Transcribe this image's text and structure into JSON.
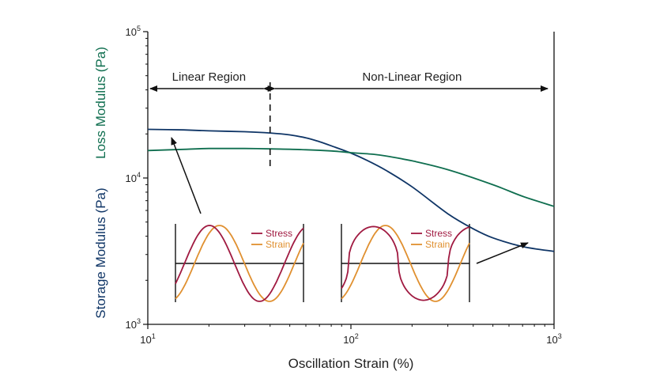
{
  "chart_data": {
    "type": "line",
    "xlabel": "Oscillation Strain (%)",
    "ylabel_primary": "Storage Modulus (Pa)",
    "ylabel_secondary": "Loss Modulus (Pa)",
    "x_scale": "log",
    "y_scale": "log",
    "xlim": [
      10,
      1000
    ],
    "ylim": [
      1000,
      100000
    ],
    "x_ticks": [
      {
        "value": 10,
        "base": "10",
        "exp": "1"
      },
      {
        "value": 100,
        "base": "10",
        "exp": "2"
      },
      {
        "value": 1000,
        "base": "10",
        "exp": "3"
      }
    ],
    "y_ticks": [
      {
        "value": 1000,
        "base": "10",
        "exp": "3"
      },
      {
        "value": 10000,
        "base": "10",
        "exp": "4"
      },
      {
        "value": 100000,
        "base": "10",
        "exp": "5"
      }
    ],
    "grid": false,
    "series": [
      {
        "name": "Storage Modulus (Pa)",
        "color": "#0f3566",
        "points": [
          [
            10,
            21500
          ],
          [
            15,
            21300
          ],
          [
            20,
            21000
          ],
          [
            30,
            20700
          ],
          [
            40,
            20300
          ],
          [
            50,
            19700
          ],
          [
            60,
            18800
          ],
          [
            70,
            17700
          ],
          [
            80,
            16600
          ],
          [
            100,
            14800
          ],
          [
            120,
            13200
          ],
          [
            150,
            11200
          ],
          [
            200,
            8700
          ],
          [
            300,
            5700
          ],
          [
            400,
            4500
          ],
          [
            500,
            3900
          ],
          [
            700,
            3400
          ],
          [
            1000,
            3150
          ]
        ]
      },
      {
        "name": "Loss Modulus (Pa)",
        "color": "#0f6e4f",
        "points": [
          [
            10,
            15400
          ],
          [
            15,
            15700
          ],
          [
            20,
            15900
          ],
          [
            30,
            15900
          ],
          [
            40,
            15800
          ],
          [
            60,
            15600
          ],
          [
            80,
            15300
          ],
          [
            100,
            14900
          ],
          [
            130,
            14500
          ],
          [
            150,
            14100
          ],
          [
            200,
            13100
          ],
          [
            300,
            11400
          ],
          [
            500,
            9000
          ],
          [
            700,
            7500
          ],
          [
            1000,
            6400
          ]
        ]
      }
    ],
    "annotations": {
      "critical_strain": 40,
      "linear_region_label": "Linear Region",
      "nonlinear_region_label": "Non-Linear Region"
    },
    "insets": [
      {
        "regime": "linear",
        "legend": {
          "stress": "Stress",
          "strain": "Strain"
        },
        "stress_color": "#a01a41",
        "strain_color": "#e09030"
      },
      {
        "regime": "non-linear",
        "legend": {
          "stress": "Stress",
          "strain": "Strain"
        },
        "stress_color": "#a01a41",
        "strain_color": "#e09030"
      }
    ]
  }
}
